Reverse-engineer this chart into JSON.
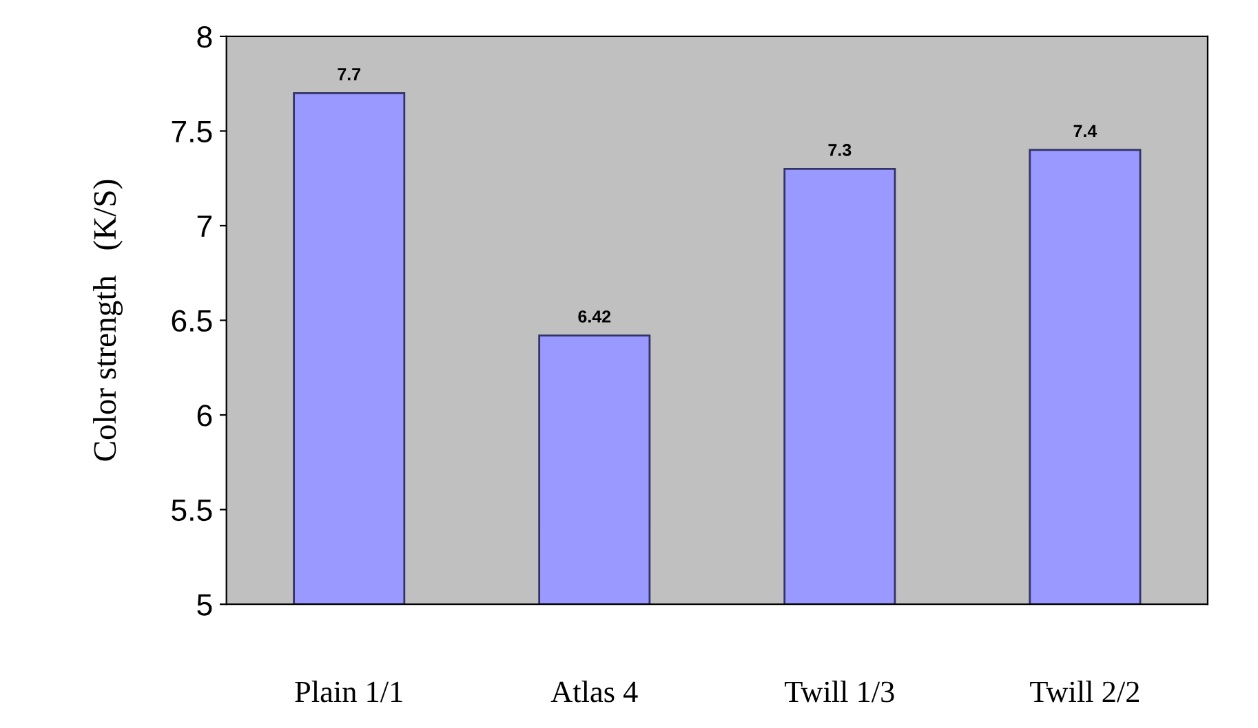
{
  "chart_data": {
    "type": "bar",
    "ylabel": "Color strength   (K/S)",
    "categories": [
      "Plain 1/1",
      "Atlas 4",
      "Twill 1/3",
      "Twill 2/2"
    ],
    "values": [
      7.7,
      6.42,
      7.3,
      7.4
    ],
    "color": "#9999ff",
    "ylim": [
      5,
      8
    ],
    "yticks": [
      5,
      5.5,
      6,
      6.5,
      7,
      7.5,
      8
    ],
    "data_labels": true,
    "grid": false
  }
}
